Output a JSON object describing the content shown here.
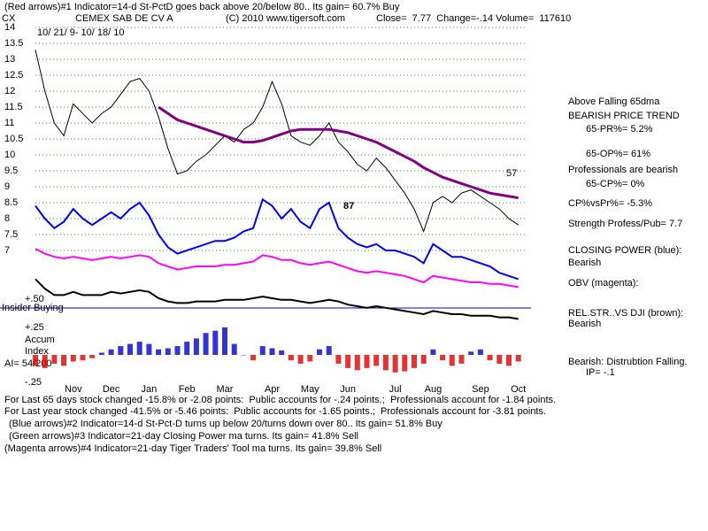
{
  "header": {
    "arrows_note": "(Red arrows)#1 Indicator=14-d St-PctD goes back above 20/below 80.. Its gain= 60.7% Buy",
    "symbol": "CX",
    "company": "CEMEX SAB DE CV A",
    "copyright": "(C) 2010 www.tigersoft.com",
    "quote": "Close=  7.77  Change=-.14 Volume=  117610",
    "date_range": "10/ 21/ 9- 10/ 18/ 10"
  },
  "side_notes": [
    "Above Falling 65dma",
    "BEARISH PRICE TREND",
    "65-PR%= 5.2%",
    "65-OP%= 61%",
    "Professionals are bearish",
    "65-CP%= 0%",
    "CP%vsPr%= -5.3%",
    "Strength Profess/Pub= 7.7",
    "CLOSING POWER (blue):",
    "Bearish",
    "OBV (magenta):",
    "REL.STR..VS DJI (brown):",
    "Bearish",
    "Bearish: Distrubtion Falling.",
    "IP= -.1"
  ],
  "footer_notes": [
    "For Last 65 days stock changed -15.8% or -2.08 points:  Public accounts for -.24 points.;  Professionals account for -1.84 points.",
    "For Last year stock changed -41.5% or -5.46 points:  Public accounts for -1.65 points.;  Professionals account for -3.81 points.",
    "(Blue arrows)#2 Indicator=14-d St-Pct-D turns up below 20/turns down over 80.. Its gain= 51.8% Buy",
    "(Green arrows)#3 Indicator=21-day Closing Power ma turns. Its gain= 41.8% Sell",
    "(Magenta arrows)#4 Indicator=21-day Tiger Traders' Tool ma turns. Its gain= 39.8% Sell"
  ],
  "chart_data": [
    {
      "type": "line",
      "ylim": [
        4.8,
        14
      ],
      "yticks": [
        14,
        13.5,
        13,
        12.5,
        12,
        11.5,
        11,
        10.5,
        10,
        9.5,
        9,
        8.5,
        8,
        7.5,
        7
      ],
      "grid": true,
      "annotations": [
        "87",
        "57",
        "+.50",
        "Insider Buying"
      ],
      "series": [
        {
          "color": "#000000",
          "values": [
            13.3,
            12.0,
            11.0,
            10.6,
            11.6,
            11.3,
            11.0,
            11.3,
            11.5,
            11.9,
            12.3,
            12.4,
            12.0,
            11.2,
            10.2,
            9.4,
            9.5,
            9.8,
            10.0,
            10.3,
            10.6,
            10.4,
            10.8,
            11.0,
            11.5,
            12.3,
            11.6,
            10.6,
            10.4,
            10.3,
            10.6,
            11.0,
            10.4,
            10.1,
            9.7,
            9.5,
            9.9,
            9.6,
            9.2,
            8.8,
            8.3,
            7.6,
            8.5,
            8.7,
            8.5,
            8.8,
            8.9,
            8.7,
            8.5,
            8.3,
            8.0,
            7.8
          ]
        },
        {
          "color": "#800080",
          "values": [
            null,
            null,
            null,
            null,
            null,
            null,
            null,
            null,
            null,
            null,
            null,
            null,
            null,
            11.5,
            11.3,
            11.1,
            11.0,
            10.9,
            10.8,
            10.7,
            10.6,
            10.5,
            10.4,
            10.4,
            10.45,
            10.55,
            10.65,
            10.75,
            10.8,
            10.8,
            10.8,
            10.8,
            10.75,
            10.7,
            10.6,
            10.5,
            10.4,
            10.25,
            10.1,
            9.95,
            9.8,
            9.6,
            9.45,
            9.3,
            9.2,
            9.1,
            9.0,
            8.9,
            8.8,
            8.75,
            8.7,
            8.65
          ]
        },
        {
          "color": "#0000ff",
          "values": [
            8.4,
            8.0,
            7.7,
            7.9,
            8.3,
            8.0,
            7.8,
            8.0,
            8.2,
            8.0,
            8.3,
            8.5,
            8.1,
            7.5,
            7.1,
            6.9,
            7.0,
            7.1,
            7.2,
            7.3,
            7.3,
            7.4,
            7.6,
            7.7,
            8.6,
            8.4,
            8.0,
            8.3,
            7.9,
            7.7,
            8.3,
            8.5,
            7.7,
            7.4,
            7.2,
            7.1,
            7.2,
            7.0,
            7.0,
            6.9,
            6.8,
            6.6,
            7.2,
            7.0,
            6.8,
            6.8,
            6.7,
            6.6,
            6.5,
            6.3,
            6.2,
            6.1
          ]
        },
        {
          "color": "#ff00ff",
          "values": [
            7.05,
            6.9,
            6.8,
            6.75,
            6.8,
            6.75,
            6.7,
            6.75,
            6.8,
            6.75,
            6.8,
            6.85,
            6.8,
            6.6,
            6.5,
            6.4,
            6.45,
            6.5,
            6.5,
            6.5,
            6.55,
            6.55,
            6.6,
            6.65,
            6.85,
            6.8,
            6.7,
            6.7,
            6.6,
            6.55,
            6.6,
            6.65,
            6.55,
            6.45,
            6.35,
            6.3,
            6.35,
            6.3,
            6.25,
            6.2,
            6.1,
            6.0,
            6.2,
            6.15,
            6.1,
            6.05,
            6.0,
            6.0,
            5.95,
            5.95,
            5.9,
            5.85
          ]
        },
        {
          "color": "#000000",
          "values": [
            6.1,
            5.8,
            5.6,
            5.6,
            5.7,
            5.6,
            5.6,
            5.6,
            5.7,
            5.65,
            5.7,
            5.75,
            5.7,
            5.5,
            5.4,
            5.35,
            5.35,
            5.4,
            5.4,
            5.4,
            5.45,
            5.45,
            5.45,
            5.5,
            5.55,
            5.5,
            5.45,
            5.45,
            5.4,
            5.35,
            5.4,
            5.45,
            5.4,
            5.3,
            5.25,
            5.2,
            5.25,
            5.2,
            5.15,
            5.1,
            5.05,
            5.0,
            5.1,
            5.05,
            5.0,
            5.0,
            4.95,
            4.95,
            4.95,
            4.9,
            4.9,
            4.85
          ]
        }
      ]
    },
    {
      "type": "bar",
      "title": "Accum",
      "subtitle": "Index",
      "note": "AI= 54/200",
      "categories": [
        null,
        null,
        null,
        null,
        "Nov",
        null,
        null,
        null,
        "Dec",
        null,
        null,
        null,
        "Jan",
        null,
        null,
        null,
        "Feb",
        null,
        null,
        null,
        "Mar",
        null,
        null,
        null,
        null,
        "Apr",
        null,
        null,
        null,
        "May",
        null,
        null,
        null,
        "Jun",
        null,
        null,
        null,
        null,
        "Jul",
        null,
        null,
        null,
        "Aug",
        null,
        null,
        null,
        null,
        "Sep",
        null,
        null,
        null,
        "Oct"
      ],
      "values": [
        -0.1,
        -0.12,
        -0.08,
        -0.1,
        -0.06,
        -0.05,
        -0.03,
        0.02,
        0.05,
        0.08,
        0.1,
        0.12,
        0.1,
        0.05,
        0.06,
        0.08,
        0.12,
        0.15,
        0.2,
        0.22,
        0.25,
        0.1,
        0.0,
        -0.05,
        0.08,
        0.06,
        0.04,
        -0.05,
        -0.08,
        -0.06,
        0.05,
        0.08,
        -0.08,
        -0.12,
        -0.14,
        -0.12,
        -0.1,
        -0.14,
        -0.16,
        -0.15,
        -0.12,
        -0.08,
        0.05,
        -0.05,
        -0.1,
        -0.08,
        0.03,
        0.05,
        -0.05,
        -0.08,
        -0.1,
        -0.06
      ],
      "positive_color": "#0000cc",
      "negative_color": "#dd0000",
      "ylim": [
        -0.25,
        0.25
      ],
      "yticks": [
        {
          "value": 0.25,
          "label": "+.25"
        },
        {
          "value": -0.25,
          "label": "-.25"
        }
      ]
    }
  ]
}
